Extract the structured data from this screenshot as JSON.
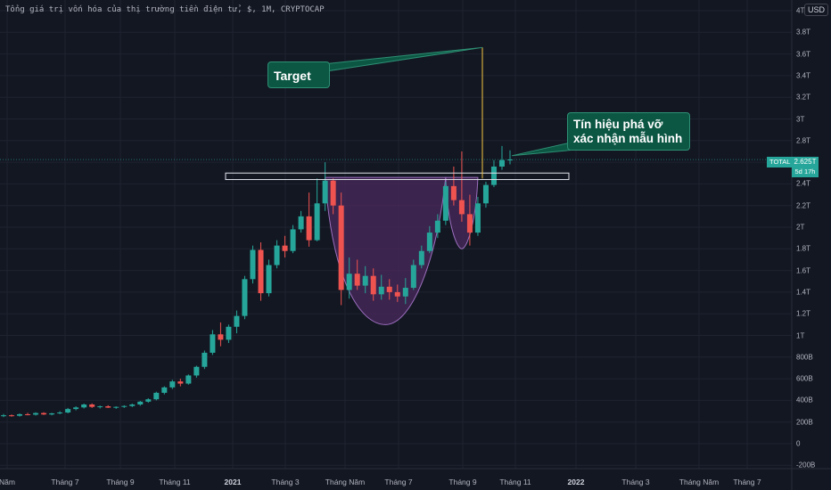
{
  "header": {
    "title": "Tổng giá trị vốn hóa của thị trường tiền điện tử, $, 1M, CRYPTOCAP",
    "currency": "USD"
  },
  "price_tag": {
    "symbol": "TOTAL",
    "value": "2.625T",
    "countdown": "5d 17h"
  },
  "annotations": {
    "target_label": "Target",
    "signal_label": "Tín hiệu phá vỡ xác nhận mẫu hình"
  },
  "colors": {
    "background": "#131722",
    "up": "#26a69a",
    "down": "#ef5350",
    "cup_fill": "#4a2a5c",
    "callout": "#0c5744",
    "target_line": "#f5c542"
  },
  "chart_data": {
    "type": "candlestick",
    "title": "Tổng giá trị vốn hóa của thị trường tiền điện tử, $, 1M, CRYPTOCAP",
    "y_unit": "USD",
    "ylim": [
      -220000000000,
      4050000000000
    ],
    "y_ticks": [
      "-200B",
      "0",
      "200B",
      "400B",
      "600B",
      "800B",
      "1T",
      "1.2T",
      "1.4T",
      "1.6T",
      "1.8T",
      "2T",
      "2.2T",
      "2.4T",
      "2.6T",
      "2.8T",
      "3T",
      "3.2T",
      "3.4T",
      "3.6T",
      "3.8T",
      "4T"
    ],
    "x_ticks": [
      "Năm",
      "Tháng 7",
      "Tháng 9",
      "Tháng 11",
      "2021",
      "Tháng 3",
      "Tháng Năm",
      "Tháng 7",
      "Tháng 9",
      "Tháng 11",
      "2022",
      "Tháng 3",
      "Tháng Năm",
      "Tháng 7"
    ],
    "grid": true,
    "last_value": 2625000000000,
    "candles_billion": [
      {
        "o": 260,
        "h": 275,
        "l": 245,
        "c": 262
      },
      {
        "o": 262,
        "h": 270,
        "l": 250,
        "c": 258
      },
      {
        "o": 258,
        "h": 280,
        "l": 250,
        "c": 272
      },
      {
        "o": 272,
        "h": 285,
        "l": 262,
        "c": 268
      },
      {
        "o": 268,
        "h": 290,
        "l": 260,
        "c": 283
      },
      {
        "o": 283,
        "h": 290,
        "l": 265,
        "c": 270
      },
      {
        "o": 270,
        "h": 285,
        "l": 262,
        "c": 280
      },
      {
        "o": 280,
        "h": 300,
        "l": 272,
        "c": 288
      },
      {
        "o": 288,
        "h": 330,
        "l": 280,
        "c": 320
      },
      {
        "o": 320,
        "h": 345,
        "l": 308,
        "c": 335
      },
      {
        "o": 335,
        "h": 370,
        "l": 325,
        "c": 362
      },
      {
        "o": 362,
        "h": 372,
        "l": 330,
        "c": 340
      },
      {
        "o": 340,
        "h": 352,
        "l": 325,
        "c": 345
      },
      {
        "o": 345,
        "h": 355,
        "l": 330,
        "c": 333
      },
      {
        "o": 333,
        "h": 345,
        "l": 322,
        "c": 340
      },
      {
        "o": 340,
        "h": 355,
        "l": 330,
        "c": 348
      },
      {
        "o": 348,
        "h": 370,
        "l": 338,
        "c": 362
      },
      {
        "o": 362,
        "h": 395,
        "l": 350,
        "c": 388
      },
      {
        "o": 388,
        "h": 420,
        "l": 378,
        "c": 410
      },
      {
        "o": 410,
        "h": 480,
        "l": 400,
        "c": 470
      },
      {
        "o": 470,
        "h": 530,
        "l": 455,
        "c": 520
      },
      {
        "o": 520,
        "h": 590,
        "l": 505,
        "c": 575
      },
      {
        "o": 575,
        "h": 600,
        "l": 530,
        "c": 555
      },
      {
        "o": 555,
        "h": 640,
        "l": 545,
        "c": 630
      },
      {
        "o": 630,
        "h": 720,
        "l": 610,
        "c": 710
      },
      {
        "o": 710,
        "h": 860,
        "l": 690,
        "c": 840
      },
      {
        "o": 840,
        "h": 1050,
        "l": 820,
        "c": 1010
      },
      {
        "o": 1010,
        "h": 1120,
        "l": 900,
        "c": 960
      },
      {
        "o": 960,
        "h": 1100,
        "l": 930,
        "c": 1080
      },
      {
        "o": 1080,
        "h": 1230,
        "l": 1020,
        "c": 1180
      },
      {
        "o": 1180,
        "h": 1550,
        "l": 1150,
        "c": 1520
      },
      {
        "o": 1520,
        "h": 1830,
        "l": 1480,
        "c": 1790
      },
      {
        "o": 1790,
        "h": 1860,
        "l": 1320,
        "c": 1390
      },
      {
        "o": 1390,
        "h": 1700,
        "l": 1360,
        "c": 1650
      },
      {
        "o": 1650,
        "h": 1880,
        "l": 1620,
        "c": 1830
      },
      {
        "o": 1830,
        "h": 1920,
        "l": 1720,
        "c": 1780
      },
      {
        "o": 1780,
        "h": 2020,
        "l": 1760,
        "c": 1980
      },
      {
        "o": 1980,
        "h": 2150,
        "l": 1950,
        "c": 2100
      },
      {
        "o": 2100,
        "h": 2320,
        "l": 1820,
        "c": 1880
      },
      {
        "o": 1880,
        "h": 2450,
        "l": 1870,
        "c": 2220
      },
      {
        "o": 2220,
        "h": 2600,
        "l": 2150,
        "c": 2430
      },
      {
        "o": 2430,
        "h": 2450,
        "l": 2120,
        "c": 2200
      },
      {
        "o": 2200,
        "h": 2320,
        "l": 1280,
        "c": 1420
      },
      {
        "o": 1420,
        "h": 1720,
        "l": 1340,
        "c": 1570
      },
      {
        "o": 1570,
        "h": 1700,
        "l": 1420,
        "c": 1460
      },
      {
        "o": 1460,
        "h": 1640,
        "l": 1390,
        "c": 1550
      },
      {
        "o": 1550,
        "h": 1620,
        "l": 1320,
        "c": 1380
      },
      {
        "o": 1380,
        "h": 1560,
        "l": 1330,
        "c": 1450
      },
      {
        "o": 1450,
        "h": 1520,
        "l": 1330,
        "c": 1400
      },
      {
        "o": 1400,
        "h": 1470,
        "l": 1310,
        "c": 1360
      },
      {
        "o": 1360,
        "h": 1530,
        "l": 1290,
        "c": 1440
      },
      {
        "o": 1440,
        "h": 1700,
        "l": 1420,
        "c": 1650
      },
      {
        "o": 1650,
        "h": 1830,
        "l": 1620,
        "c": 1780
      },
      {
        "o": 1780,
        "h": 2010,
        "l": 1760,
        "c": 1950
      },
      {
        "o": 1950,
        "h": 2120,
        "l": 1900,
        "c": 2060
      },
      {
        "o": 2060,
        "h": 2420,
        "l": 2020,
        "c": 2380
      },
      {
        "o": 2380,
        "h": 2560,
        "l": 2200,
        "c": 2250
      },
      {
        "o": 2250,
        "h": 2700,
        "l": 2050,
        "c": 2120
      },
      {
        "o": 2120,
        "h": 2300,
        "l": 1830,
        "c": 1950
      },
      {
        "o": 1950,
        "h": 2280,
        "l": 1920,
        "c": 2220
      },
      {
        "o": 2220,
        "h": 2420,
        "l": 2180,
        "c": 2390
      },
      {
        "o": 2390,
        "h": 2620,
        "l": 2370,
        "c": 2560
      },
      {
        "o": 2560,
        "h": 2750,
        "l": 2530,
        "c": 2620
      },
      {
        "o": 2620,
        "h": 2710,
        "l": 2580,
        "c": 2625
      }
    ],
    "resistance_zone_billion": [
      2440,
      2500
    ],
    "target_billion": 3660,
    "breakout_target_value_billion": 2450
  }
}
